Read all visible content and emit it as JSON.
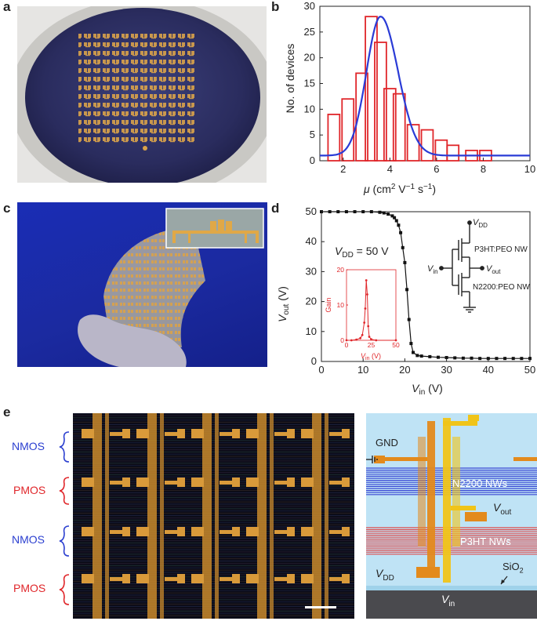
{
  "panels": {
    "a": {
      "letter": "a"
    },
    "b": {
      "letter": "b"
    },
    "c": {
      "letter": "c"
    },
    "d": {
      "letter": "d"
    },
    "e": {
      "letter": "e"
    }
  },
  "chart_b": {
    "ylabel": "No. of devices",
    "xlabel_parts": [
      "μ",
      " (cm",
      "2",
      " V",
      "−1",
      " s",
      "−1",
      ")"
    ]
  },
  "chart_d": {
    "vdd_label_prefix": "V",
    "vdd_label_sub": "DD",
    "vdd_label_suffix": " = 50 V",
    "ylabel_main": "V",
    "ylabel_sub": "out",
    "ylabel_unit": " (V)",
    "xlabel_main": "V",
    "xlabel_sub": "in",
    "xlabel_unit": " (V)",
    "inset_ylabel": "Gain",
    "inset_xlabel_main": "V",
    "inset_xlabel_sub": "in",
    "inset_xlabel_unit": " (V)",
    "circuit": {
      "vdd_main": "V",
      "vdd_sub": "DD",
      "top_label": "P3HT:PEO NW",
      "vout_main": "V",
      "vout_sub": "out",
      "vin_main": "V",
      "vin_sub": "in",
      "bottom_label": "N2200:PEO NW"
    }
  },
  "panel_e": {
    "row_labels": [
      "NMOS",
      "PMOS",
      "NMOS",
      "PMOS"
    ],
    "row_colors": [
      "#2b3fd0",
      "#e0262a",
      "#2b3fd0",
      "#e0262a"
    ],
    "schematic": {
      "gnd": "GND",
      "n2200": "N2200 NWs",
      "vout_main": "V",
      "vout_sub": "out",
      "p3ht": "P3HT NWs",
      "vdd_main": "V",
      "vdd_sub": "DD",
      "sio2_main": "SiO",
      "sio2_sub": "2",
      "vin_main": "V",
      "vin_sub": "in"
    }
  },
  "chart_data": [
    {
      "type": "bar",
      "title": "",
      "xlabel": "μ (cm2 V−1 s−1)",
      "ylabel": "No. of devices",
      "xlim": [
        1,
        10
      ],
      "ylim": [
        0,
        30
      ],
      "xticks": [
        2,
        4,
        6,
        8,
        10
      ],
      "yticks": [
        0,
        5,
        10,
        15,
        20,
        25,
        30
      ],
      "bin_centers": [
        1.6,
        2.2,
        2.8,
        3.2,
        3.6,
        4.0,
        4.4,
        5.0,
        5.6,
        6.2,
        6.7,
        7.5,
        8.1
      ],
      "values": [
        9,
        12,
        17,
        28,
        23,
        14,
        13,
        7,
        6,
        4,
        3,
        2,
        2
      ],
      "bar_color": "#e0262a",
      "fit_curve": {
        "type": "gaussian",
        "color": "#2a3bd6",
        "peak_x": 3.6,
        "peak_y": 28,
        "baseline": 1.0,
        "sigma_left": 0.6,
        "sigma_right": 0.75
      }
    },
    {
      "type": "line",
      "title": "",
      "xlabel": "Vin (V)",
      "ylabel": "Vout (V)",
      "xlim": [
        0,
        50
      ],
      "ylim": [
        0,
        50
      ],
      "xticks": [
        0,
        10,
        20,
        30,
        40,
        50
      ],
      "yticks": [
        0,
        10,
        20,
        30,
        40,
        50
      ],
      "series": [
        {
          "color": "#111111",
          "x": [
            0,
            2,
            4,
            6,
            8,
            10,
            12,
            14,
            15,
            16,
            17,
            17.5,
            18,
            18.5,
            19,
            19.5,
            20,
            20.5,
            21,
            21.5,
            22,
            23,
            24,
            26,
            28,
            30,
            32,
            34,
            36,
            38,
            40,
            42,
            44,
            46,
            48,
            50
          ],
          "y": [
            50,
            50,
            50,
            50,
            50,
            50,
            50,
            49.8,
            49.6,
            49.2,
            48.6,
            48,
            47,
            45.5,
            43,
            38,
            33,
            24,
            14,
            6,
            3,
            2,
            1.8,
            1.6,
            1.4,
            1.3,
            1.2,
            1.1,
            1.1,
            1.0,
            1.0,
            1.0,
            1.0,
            1.0,
            1.0,
            1.0
          ]
        }
      ],
      "inset": {
        "type": "line",
        "xlabel": "Vin (V)",
        "ylabel": "Gain",
        "xlim": [
          0,
          50
        ],
        "ylim": [
          0,
          20
        ],
        "xticks": [
          0,
          25,
          50
        ],
        "yticks": [
          0,
          10,
          20
        ],
        "color": "#e0262a",
        "x": [
          0,
          5,
          10,
          14,
          16,
          18,
          19,
          20,
          21,
          22,
          23,
          25,
          30,
          50
        ],
        "y": [
          0,
          0,
          0.2,
          0.6,
          1.5,
          5,
          9,
          17,
          13,
          4,
          1,
          0.3,
          0,
          0
        ]
      }
    }
  ]
}
